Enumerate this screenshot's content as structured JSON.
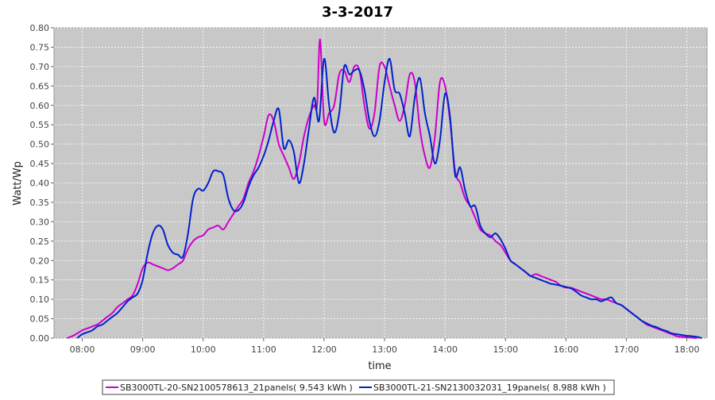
{
  "chart_data": {
    "type": "line",
    "title": "3-3-2017",
    "xlabel": "time",
    "ylabel": "Watt/Wp",
    "xlim": [
      "07:32",
      "18:20"
    ],
    "ylim": [
      0,
      0.8
    ],
    "y_ticks": [
      "0.00",
      "0.05",
      "0.10",
      "0.15",
      "0.20",
      "0.25",
      "0.30",
      "0.35",
      "0.40",
      "0.45",
      "0.50",
      "0.55",
      "0.60",
      "0.65",
      "0.70",
      "0.75",
      "0.80"
    ],
    "x_ticks": [
      "08:00",
      "09:00",
      "10:00",
      "11:00",
      "12:00",
      "13:00",
      "14:00",
      "15:00",
      "16:00",
      "17:00",
      "18:00"
    ],
    "grid": true,
    "legend_position": "bottom",
    "colors": {
      "plot_background": "#c8c8c8",
      "grid": "#ffffff"
    },
    "series": [
      {
        "name": "SB3000TL-20-SN2100578613_21panels( 9.543 kWh )",
        "color": "#cc00cc",
        "points": [
          [
            "07:45",
            0.0
          ],
          [
            "07:50",
            0.005
          ],
          [
            "07:55",
            0.012
          ],
          [
            "08:00",
            0.02
          ],
          [
            "08:05",
            0.025
          ],
          [
            "08:10",
            0.03
          ],
          [
            "08:15",
            0.035
          ],
          [
            "08:20",
            0.045
          ],
          [
            "08:25",
            0.055
          ],
          [
            "08:30",
            0.065
          ],
          [
            "08:35",
            0.08
          ],
          [
            "08:40",
            0.09
          ],
          [
            "08:45",
            0.1
          ],
          [
            "08:50",
            0.11
          ],
          [
            "08:55",
            0.14
          ],
          [
            "09:00",
            0.18
          ],
          [
            "09:05",
            0.195
          ],
          [
            "09:10",
            0.19
          ],
          [
            "09:15",
            0.185
          ],
          [
            "09:20",
            0.18
          ],
          [
            "09:25",
            0.175
          ],
          [
            "09:30",
            0.18
          ],
          [
            "09:35",
            0.19
          ],
          [
            "09:40",
            0.2
          ],
          [
            "09:45",
            0.23
          ],
          [
            "09:50",
            0.25
          ],
          [
            "09:55",
            0.26
          ],
          [
            "10:00",
            0.265
          ],
          [
            "10:05",
            0.28
          ],
          [
            "10:10",
            0.285
          ],
          [
            "10:15",
            0.29
          ],
          [
            "10:20",
            0.28
          ],
          [
            "10:25",
            0.3
          ],
          [
            "10:30",
            0.32
          ],
          [
            "10:35",
            0.34
          ],
          [
            "10:40",
            0.36
          ],
          [
            "10:45",
            0.4
          ],
          [
            "10:50",
            0.43
          ],
          [
            "10:55",
            0.47
          ],
          [
            "11:00",
            0.52
          ],
          [
            "11:05",
            0.575
          ],
          [
            "11:10",
            0.56
          ],
          [
            "11:15",
            0.5
          ],
          [
            "11:20",
            0.47
          ],
          [
            "11:25",
            0.44
          ],
          [
            "11:30",
            0.41
          ],
          [
            "11:35",
            0.45
          ],
          [
            "11:40",
            0.52
          ],
          [
            "11:45",
            0.57
          ],
          [
            "11:50",
            0.6
          ],
          [
            "11:53",
            0.6
          ],
          [
            "11:56",
            0.77
          ],
          [
            "12:00",
            0.56
          ],
          [
            "12:05",
            0.58
          ],
          [
            "12:10",
            0.6
          ],
          [
            "12:15",
            0.68
          ],
          [
            "12:20",
            0.69
          ],
          [
            "12:25",
            0.66
          ],
          [
            "12:30",
            0.7
          ],
          [
            "12:35",
            0.69
          ],
          [
            "12:40",
            0.6
          ],
          [
            "12:45",
            0.54
          ],
          [
            "12:50",
            0.58
          ],
          [
            "12:55",
            0.7
          ],
          [
            "13:00",
            0.7
          ],
          [
            "13:05",
            0.65
          ],
          [
            "13:10",
            0.6
          ],
          [
            "13:15",
            0.56
          ],
          [
            "13:20",
            0.6
          ],
          [
            "13:25",
            0.68
          ],
          [
            "13:30",
            0.66
          ],
          [
            "13:35",
            0.54
          ],
          [
            "13:40",
            0.47
          ],
          [
            "13:45",
            0.44
          ],
          [
            "13:50",
            0.52
          ],
          [
            "13:55",
            0.66
          ],
          [
            "14:00",
            0.65
          ],
          [
            "14:05",
            0.56
          ],
          [
            "14:10",
            0.43
          ],
          [
            "14:15",
            0.4
          ],
          [
            "14:20",
            0.36
          ],
          [
            "14:25",
            0.34
          ],
          [
            "14:30",
            0.31
          ],
          [
            "14:35",
            0.28
          ],
          [
            "14:40",
            0.27
          ],
          [
            "14:45",
            0.265
          ],
          [
            "14:50",
            0.25
          ],
          [
            "14:55",
            0.24
          ],
          [
            "15:00",
            0.22
          ],
          [
            "15:05",
            0.2
          ],
          [
            "15:10",
            0.19
          ],
          [
            "15:15",
            0.18
          ],
          [
            "15:20",
            0.17
          ],
          [
            "15:25",
            0.16
          ],
          [
            "15:30",
            0.165
          ],
          [
            "15:35",
            0.16
          ],
          [
            "15:40",
            0.155
          ],
          [
            "15:45",
            0.15
          ],
          [
            "15:50",
            0.145
          ],
          [
            "15:55",
            0.135
          ],
          [
            "16:00",
            0.13
          ],
          [
            "16:05",
            0.13
          ],
          [
            "16:10",
            0.125
          ],
          [
            "16:15",
            0.12
          ],
          [
            "16:20",
            0.115
          ],
          [
            "16:25",
            0.11
          ],
          [
            "16:30",
            0.105
          ],
          [
            "16:35",
            0.1
          ],
          [
            "16:40",
            0.1
          ],
          [
            "16:45",
            0.095
          ],
          [
            "16:50",
            0.09
          ],
          [
            "16:55",
            0.085
          ],
          [
            "17:00",
            0.075
          ],
          [
            "17:05",
            0.065
          ],
          [
            "17:10",
            0.055
          ],
          [
            "17:15",
            0.045
          ],
          [
            "17:20",
            0.035
          ],
          [
            "17:25",
            0.03
          ],
          [
            "17:30",
            0.025
          ],
          [
            "17:35",
            0.02
          ],
          [
            "17:40",
            0.015
          ],
          [
            "17:45",
            0.01
          ],
          [
            "17:50",
            0.005
          ],
          [
            "17:55",
            0.003
          ],
          [
            "18:00",
            0.002
          ],
          [
            "18:10",
            0.0
          ]
        ]
      },
      {
        "name": "SB3000TL-21-SN2130032031_19panels( 8.988 kWh )",
        "color": "#0022cc",
        "points": [
          [
            "07:55",
            0.0
          ],
          [
            "08:00",
            0.01
          ],
          [
            "08:05",
            0.015
          ],
          [
            "08:10",
            0.02
          ],
          [
            "08:15",
            0.03
          ],
          [
            "08:20",
            0.035
          ],
          [
            "08:25",
            0.045
          ],
          [
            "08:30",
            0.055
          ],
          [
            "08:35",
            0.065
          ],
          [
            "08:40",
            0.08
          ],
          [
            "08:45",
            0.095
          ],
          [
            "08:50",
            0.105
          ],
          [
            "08:55",
            0.115
          ],
          [
            "09:00",
            0.15
          ],
          [
            "09:05",
            0.22
          ],
          [
            "09:10",
            0.27
          ],
          [
            "09:15",
            0.29
          ],
          [
            "09:20",
            0.28
          ],
          [
            "09:25",
            0.24
          ],
          [
            "09:30",
            0.22
          ],
          [
            "09:35",
            0.215
          ],
          [
            "09:40",
            0.21
          ],
          [
            "09:45",
            0.27
          ],
          [
            "09:50",
            0.36
          ],
          [
            "09:55",
            0.385
          ],
          [
            "10:00",
            0.38
          ],
          [
            "10:05",
            0.4
          ],
          [
            "10:10",
            0.43
          ],
          [
            "10:15",
            0.43
          ],
          [
            "10:20",
            0.42
          ],
          [
            "10:25",
            0.36
          ],
          [
            "10:30",
            0.33
          ],
          [
            "10:35",
            0.33
          ],
          [
            "10:40",
            0.35
          ],
          [
            "10:45",
            0.39
          ],
          [
            "10:50",
            0.42
          ],
          [
            "10:55",
            0.44
          ],
          [
            "11:00",
            0.47
          ],
          [
            "11:05",
            0.51
          ],
          [
            "11:10",
            0.56
          ],
          [
            "11:15",
            0.59
          ],
          [
            "11:20",
            0.49
          ],
          [
            "11:25",
            0.51
          ],
          [
            "11:30",
            0.48
          ],
          [
            "11:35",
            0.4
          ],
          [
            "11:40",
            0.45
          ],
          [
            "11:45",
            0.54
          ],
          [
            "11:50",
            0.62
          ],
          [
            "11:55",
            0.56
          ],
          [
            "12:00",
            0.72
          ],
          [
            "12:05",
            0.6
          ],
          [
            "12:10",
            0.53
          ],
          [
            "12:15",
            0.58
          ],
          [
            "12:20",
            0.7
          ],
          [
            "12:25",
            0.68
          ],
          [
            "12:30",
            0.69
          ],
          [
            "12:35",
            0.69
          ],
          [
            "12:40",
            0.64
          ],
          [
            "12:45",
            0.56
          ],
          [
            "12:50",
            0.52
          ],
          [
            "12:55",
            0.56
          ],
          [
            "13:00",
            0.66
          ],
          [
            "13:05",
            0.72
          ],
          [
            "13:10",
            0.64
          ],
          [
            "13:15",
            0.63
          ],
          [
            "13:20",
            0.58
          ],
          [
            "13:25",
            0.52
          ],
          [
            "13:30",
            0.62
          ],
          [
            "13:35",
            0.67
          ],
          [
            "13:40",
            0.58
          ],
          [
            "13:45",
            0.52
          ],
          [
            "13:50",
            0.45
          ],
          [
            "13:55",
            0.51
          ],
          [
            "14:00",
            0.63
          ],
          [
            "14:05",
            0.57
          ],
          [
            "14:10",
            0.42
          ],
          [
            "14:15",
            0.44
          ],
          [
            "14:20",
            0.38
          ],
          [
            "14:25",
            0.34
          ],
          [
            "14:30",
            0.34
          ],
          [
            "14:35",
            0.29
          ],
          [
            "14:40",
            0.27
          ],
          [
            "14:45",
            0.26
          ],
          [
            "14:50",
            0.27
          ],
          [
            "14:55",
            0.255
          ],
          [
            "15:00",
            0.23
          ],
          [
            "15:05",
            0.2
          ],
          [
            "15:10",
            0.19
          ],
          [
            "15:15",
            0.18
          ],
          [
            "15:20",
            0.17
          ],
          [
            "15:25",
            0.16
          ],
          [
            "15:30",
            0.155
          ],
          [
            "15:35",
            0.15
          ],
          [
            "15:40",
            0.145
          ],
          [
            "15:45",
            0.14
          ],
          [
            "15:50",
            0.138
          ],
          [
            "15:55",
            0.135
          ],
          [
            "16:00",
            0.132
          ],
          [
            "16:05",
            0.128
          ],
          [
            "16:10",
            0.12
          ],
          [
            "16:15",
            0.11
          ],
          [
            "16:20",
            0.105
          ],
          [
            "16:25",
            0.1
          ],
          [
            "16:30",
            0.1
          ],
          [
            "16:35",
            0.095
          ],
          [
            "16:40",
            0.1
          ],
          [
            "16:45",
            0.105
          ],
          [
            "16:50",
            0.09
          ],
          [
            "16:55",
            0.085
          ],
          [
            "17:00",
            0.075
          ],
          [
            "17:05",
            0.065
          ],
          [
            "17:10",
            0.055
          ],
          [
            "17:15",
            0.045
          ],
          [
            "17:20",
            0.038
          ],
          [
            "17:25",
            0.032
          ],
          [
            "17:30",
            0.028
          ],
          [
            "17:35",
            0.022
          ],
          [
            "17:40",
            0.018
          ],
          [
            "17:45",
            0.012
          ],
          [
            "17:50",
            0.01
          ],
          [
            "17:55",
            0.008
          ],
          [
            "18:00",
            0.006
          ],
          [
            "18:05",
            0.005
          ],
          [
            "18:10",
            0.003
          ],
          [
            "18:15",
            0.0
          ]
        ]
      }
    ]
  }
}
